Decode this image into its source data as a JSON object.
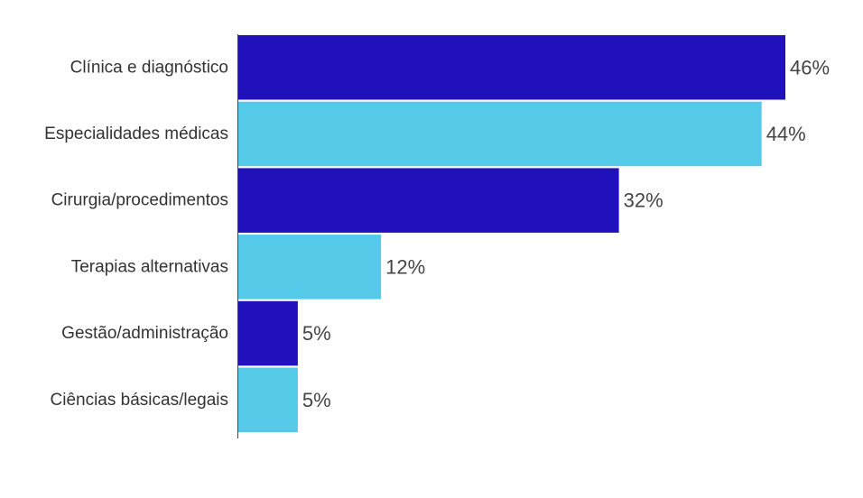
{
  "chart_data": {
    "type": "bar",
    "orientation": "horizontal",
    "categories": [
      "Clínica e diagnóstico",
      "Especialidades médicas",
      "Cirurgia/procedimentos",
      "Terapias alternativas",
      "Gestão/administração",
      "Ciências básicas/legais"
    ],
    "values": [
      46,
      44,
      32,
      12,
      5,
      5
    ],
    "value_labels": [
      "46%",
      "44%",
      "32%",
      "12%",
      "5%",
      "5%"
    ],
    "bar_colors": [
      "#2111BB",
      "#55CAE8",
      "#2111BB",
      "#55CAE8",
      "#2111BB",
      "#55CAE8"
    ],
    "xlim": [
      0,
      46
    ],
    "grid": false,
    "legend": "none"
  }
}
